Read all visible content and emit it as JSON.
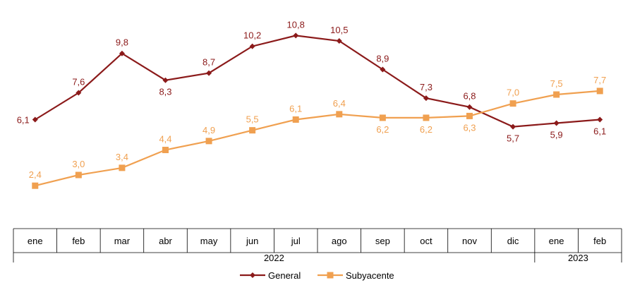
{
  "chart_data": {
    "type": "line",
    "title": "",
    "xlabel": "",
    "ylabel": "",
    "categories": [
      "ene",
      "feb",
      "mar",
      "abr",
      "may",
      "jun",
      "jul",
      "ago",
      "sep",
      "oct",
      "nov",
      "dic",
      "ene",
      "feb"
    ],
    "years": [
      {
        "label": "2022",
        "span": 12
      },
      {
        "label": "2023",
        "span": 2
      }
    ],
    "ylim": [
      0,
      12
    ],
    "grid": false,
    "legend_position": "bottom",
    "series": [
      {
        "name": "General",
        "color": "#8B1A1A",
        "marker": "diamond",
        "values": [
          6.1,
          7.6,
          9.8,
          8.3,
          8.7,
          10.2,
          10.8,
          10.5,
          8.9,
          7.3,
          6.8,
          5.7,
          5.9,
          6.1
        ],
        "labels": [
          "6,1",
          "7,6",
          "9,8",
          "8,3",
          "8,7",
          "10,2",
          "10,8",
          "10,5",
          "8,9",
          "7,3",
          "6,8",
          "5,7",
          "5,9",
          "6,1"
        ]
      },
      {
        "name": "Subyacente",
        "color": "#F0A050",
        "marker": "square",
        "values": [
          2.4,
          3.0,
          3.4,
          4.4,
          4.9,
          5.5,
          6.1,
          6.4,
          6.2,
          6.2,
          6.3,
          7.0,
          7.5,
          7.7
        ],
        "labels": [
          "2,4",
          "3,0",
          "3,4",
          "4,4",
          "4,9",
          "5,5",
          "6,1",
          "6,4",
          "6,2",
          "6,2",
          "6,3",
          "7,0",
          "7,5",
          "7,7"
        ]
      }
    ]
  }
}
